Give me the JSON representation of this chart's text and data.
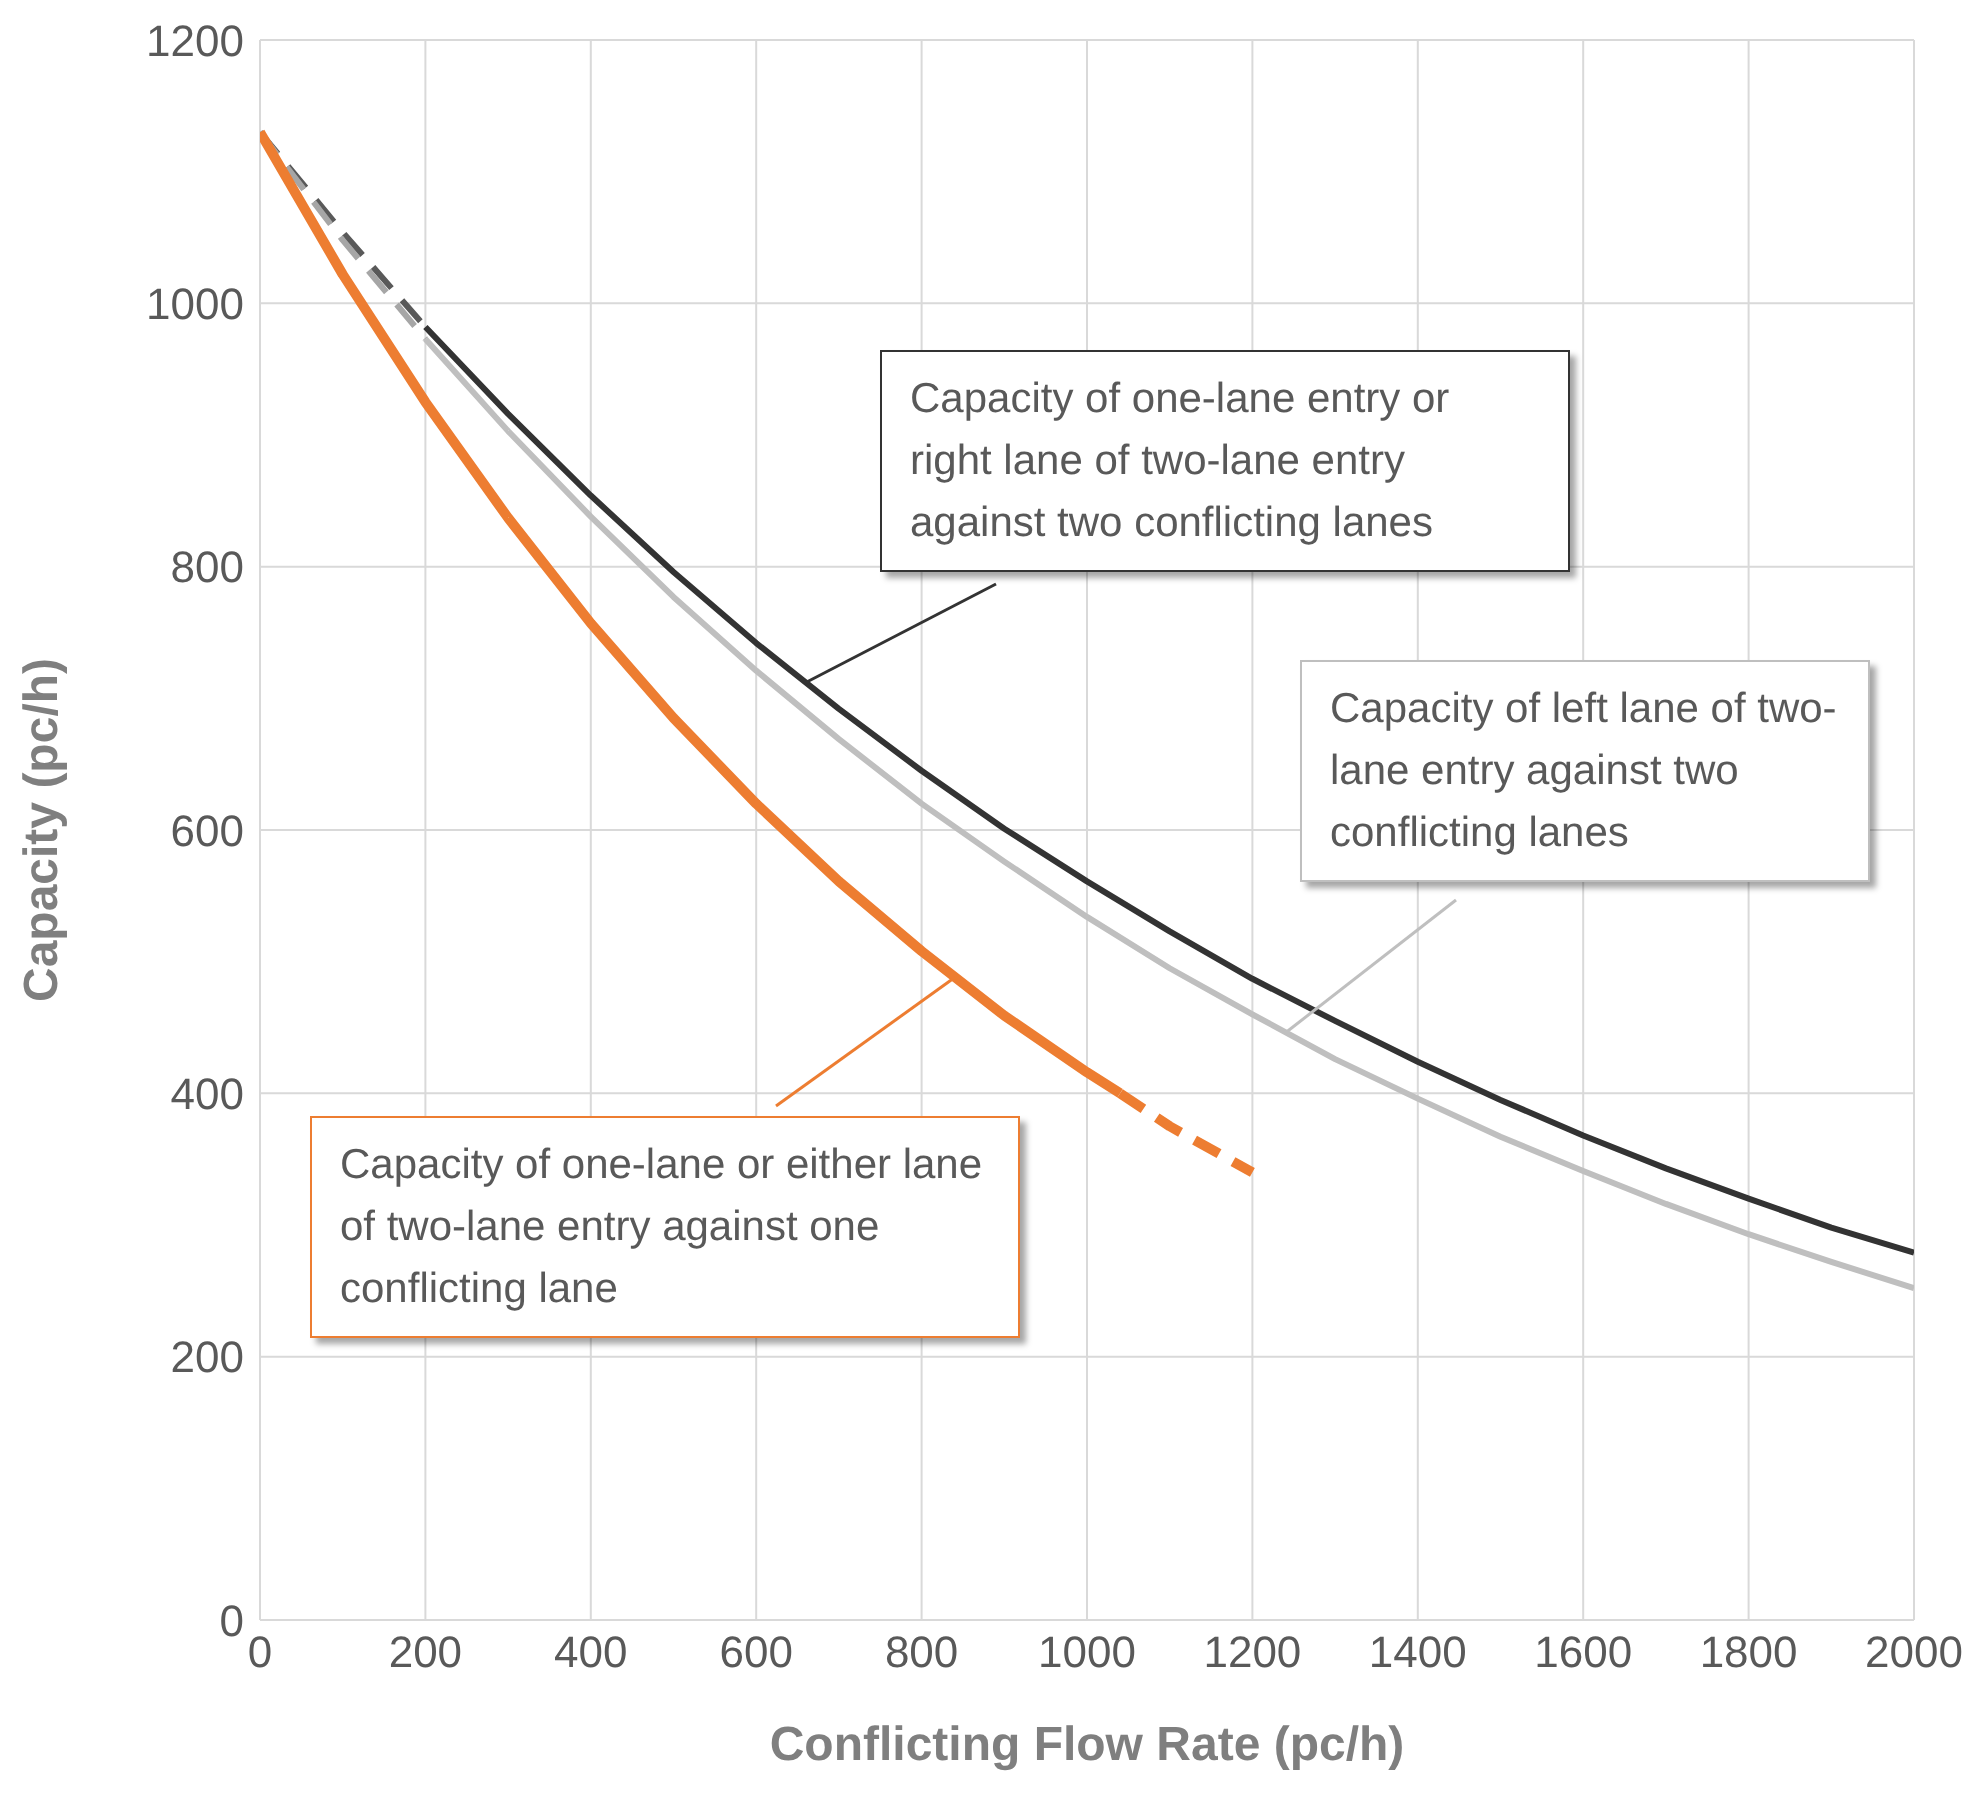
{
  "chart_data": {
    "type": "line",
    "xlabel": "Conflicting Flow Rate (pc/h)",
    "ylabel": "Capacity (pc/h)",
    "xlim": [
      0,
      2000
    ],
    "xticks": [
      0,
      200,
      400,
      600,
      800,
      1000,
      1200,
      1400,
      1600,
      1800,
      2000
    ],
    "ylim": [
      0,
      1200
    ],
    "yticks": [
      0,
      200,
      400,
      600,
      800,
      1000,
      1200
    ],
    "grid": true,
    "marker": "none",
    "annotations": [
      {
        "text": "Capacity of one-lane entry or right lane of two-lane entry against two conflicting lanes",
        "x": 660,
        "y": 712
      },
      {
        "text": "Capacity of left lane of two-lane entry against two conflicting lanes",
        "x": 1240,
        "y": 446
      },
      {
        "text": "Capacity of one-lane or either lane of two-lane entry against one conflicting lane",
        "x": 840,
        "y": 488
      }
    ],
    "series": [
      {
        "color": "#333333",
        "line_style": "solid",
        "x": [
          200,
          300,
          400,
          500,
          600,
          700,
          800,
          900,
          1000,
          1100,
          1200,
          1300,
          1400,
          1500,
          1600,
          1700,
          1800,
          1900,
          2000
        ],
        "values": [
          982,
          916,
          854,
          796,
          742,
          692,
          645,
          601,
          561,
          523,
          487,
          455,
          424,
          395,
          368,
          343,
          320,
          298,
          279
        ]
      },
      {
        "color": "#595959",
        "line_style": "dashed",
        "x": [
          0,
          100,
          200
        ],
        "values": [
          1130,
          1054,
          982
        ]
      },
      {
        "color": "#bfbfbf",
        "line_style": "solid",
        "x": [
          200,
          300,
          400,
          500,
          600,
          700,
          800,
          900,
          1000,
          1100,
          1200,
          1300,
          1400,
          1500,
          1600,
          1700,
          1800,
          1900,
          2000
        ],
        "values": [
          973,
          903,
          838,
          777,
          721,
          669,
          620,
          576,
          534,
          495,
          460,
          426,
          396,
          367,
          341,
          316,
          293,
          272,
          252
        ]
      },
      {
        "color": "#a6a6a6",
        "line_style": "dashed",
        "x": [
          0,
          100,
          200
        ],
        "values": [
          1130,
          1048,
          973
        ]
      },
      {
        "color": "#ed7d31",
        "line_style": "solid",
        "x": [
          0,
          100,
          200,
          300,
          400,
          500,
          600,
          700,
          800,
          900,
          1000,
          1040
        ],
        "values": [
          1130,
          1022,
          925,
          837,
          757,
          685,
          620,
          561,
          508,
          459,
          416,
          400
        ]
      },
      {
        "color": "#ed7d31",
        "line_style": "dashed",
        "x": [
          1040,
          1100,
          1200
        ],
        "values": [
          400,
          375,
          340
        ]
      }
    ]
  }
}
